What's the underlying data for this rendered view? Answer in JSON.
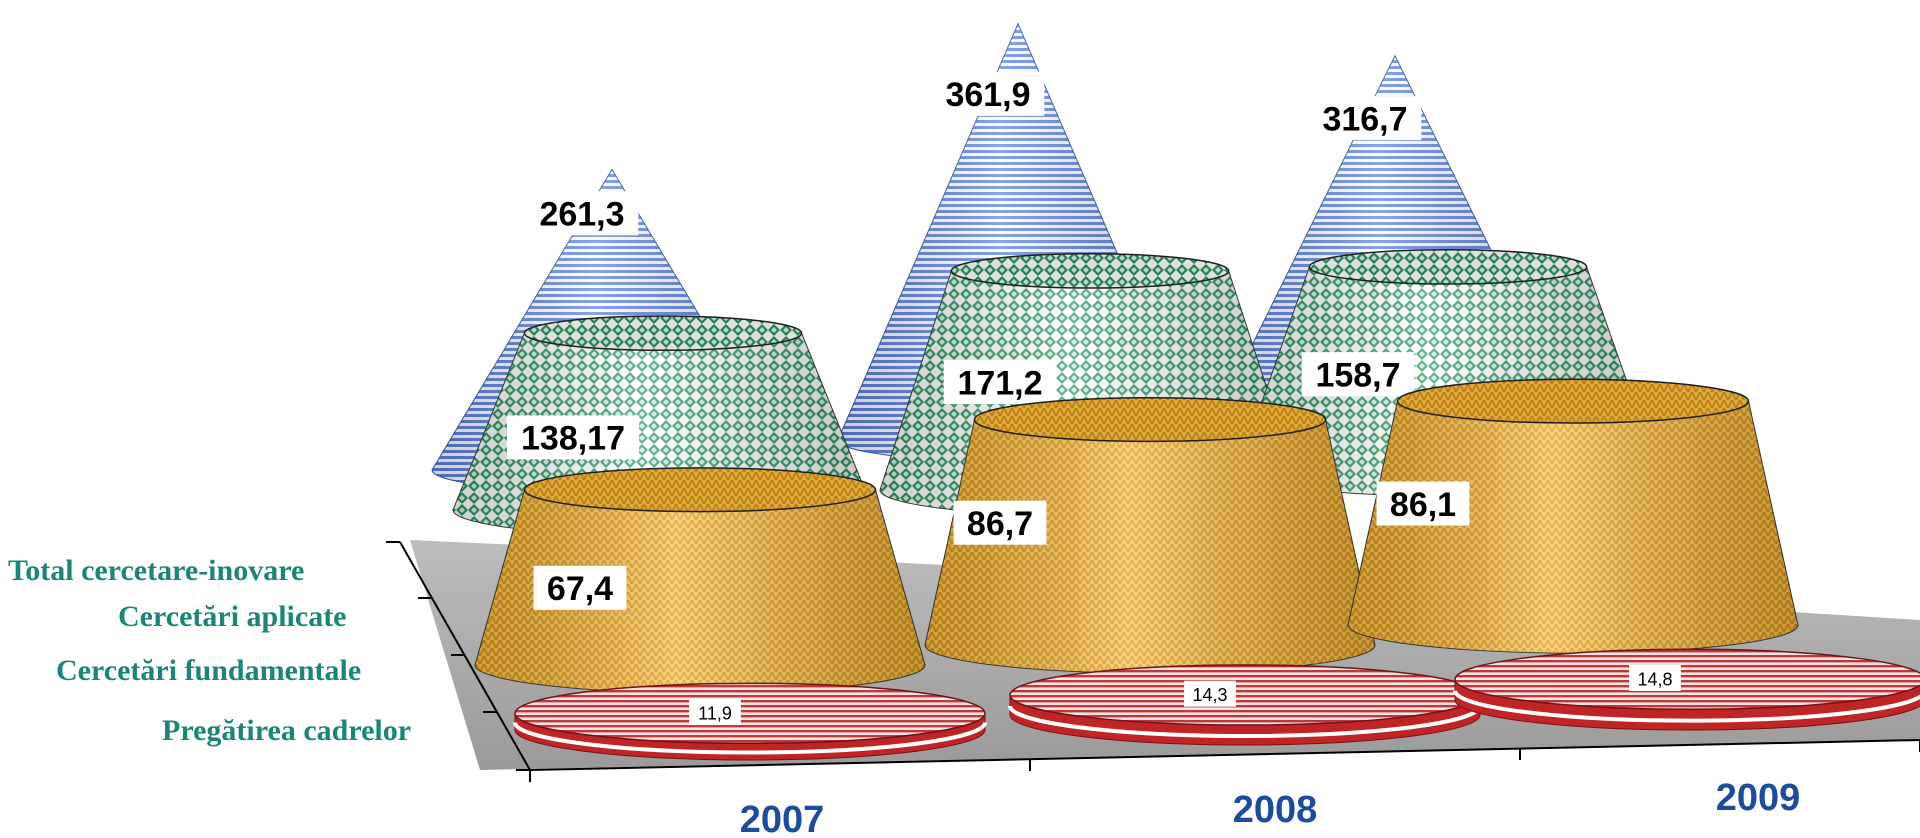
{
  "chart_data": {
    "type": "bar",
    "categories": [
      "2007",
      "2008",
      "2009"
    ],
    "series": [
      {
        "name": "Total cercetare-inovare",
        "values": [
          261.3,
          361.9,
          316.7
        ],
        "labels": [
          "261,3",
          "361,9",
          "316,7"
        ],
        "color": "#6a8ee6",
        "shape": "cone"
      },
      {
        "name": "Cercetări aplicate",
        "values": [
          138.17,
          171.2,
          158.7
        ],
        "labels": [
          "138,17",
          "171,2",
          "158,7"
        ],
        "color": "#2ea06e",
        "shape": "truncated-cone"
      },
      {
        "name": "Cercetări fundamentale",
        "values": [
          67.4,
          86.7,
          86.1
        ],
        "labels": [
          "67,4",
          "86,7",
          "86,1"
        ],
        "color": "#f2a71b",
        "shape": "truncated-cone"
      },
      {
        "name": "Pregătirea cadrelor",
        "values": [
          11.9,
          14.3,
          14.8
        ],
        "labels": [
          "11,9",
          "14,3",
          "14,8"
        ],
        "color": "#b51d1d",
        "shape": "disc"
      }
    ],
    "legend": "left",
    "grid": false
  }
}
